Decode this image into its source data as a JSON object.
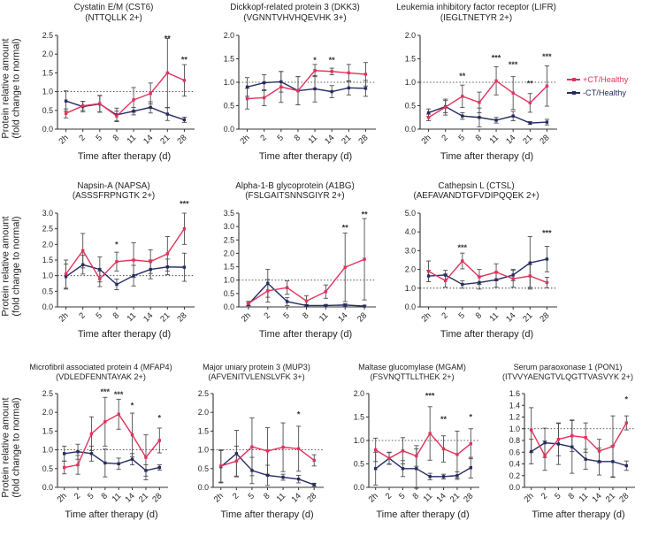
{
  "legend": {
    "items": [
      {
        "label": "+CT/Healthy",
        "color": "#E4315B"
      },
      {
        "label": "-CT/Healthy",
        "color": "#252C62"
      }
    ]
  },
  "axis": {
    "ylabel_line1": "Protein relative amount",
    "ylabel_line2": "(fold change to normal)",
    "xlabel": "Time after therapy (d)"
  },
  "colors": {
    "plus_ct": "#E4315B",
    "minus_ct": "#252C62",
    "error_bar": "#4d4d4d",
    "reference_line": "#231f20"
  },
  "chart_data": [
    {
      "id": "cst6",
      "type": "line",
      "row": 0,
      "title": "Cystatin E/M (CST6)",
      "subtitle": "(NTTQLLK 2+)",
      "xlabel": "Time after therapy (d)",
      "ylabel": "Protein relative amount (fold change to normal)",
      "categories": [
        "2h",
        "2",
        "5",
        "8",
        "11",
        "14",
        "21",
        "28"
      ],
      "ylim": [
        0,
        2.5
      ],
      "ytick_step": 0.5,
      "reference_line": 1.0,
      "series": [
        {
          "name": "+CT/Healthy",
          "color": "#E4315B",
          "values": [
            0.42,
            0.62,
            0.68,
            0.35,
            0.78,
            0.95,
            1.5,
            1.3
          ],
          "errors": [
            0.12,
            0.12,
            0.22,
            0.13,
            0.33,
            0.28,
            0.92,
            0.42
          ]
        },
        {
          "name": "-CT/Healthy",
          "color": "#252C62",
          "values": [
            0.75,
            0.6,
            0.67,
            0.38,
            0.48,
            0.58,
            0.4,
            0.25
          ],
          "errors": [
            0.27,
            0.14,
            0.22,
            0.18,
            0.1,
            0.15,
            0.17,
            0.07
          ]
        }
      ],
      "annotations": [
        {
          "x": "21",
          "y": 2.42,
          "text": "**"
        },
        {
          "x": "28",
          "y": 1.85,
          "text": "**"
        }
      ]
    },
    {
      "id": "dkk3",
      "type": "line",
      "row": 0,
      "title": "Dickkopf-related protein 3 (DKK3)",
      "subtitle": "(VGNNTVHVHQEVHK 3+)",
      "xlabel": "Time after therapy (d)",
      "ylabel": "Protein relative amount (fold change to normal)",
      "categories": [
        "2h",
        "2",
        "5",
        "8",
        "11",
        "14",
        "21",
        "28"
      ],
      "ylim": [
        0,
        2.0
      ],
      "ytick_step": 0.5,
      "reference_line": 1.0,
      "series": [
        {
          "name": "+CT/Healthy",
          "color": "#E4315B",
          "values": [
            0.65,
            0.67,
            0.9,
            0.82,
            1.25,
            1.23,
            1.2,
            1.17
          ],
          "errors": [
            0.22,
            0.17,
            0.33,
            0.3,
            0.13,
            0.07,
            0.18,
            0.25
          ]
        },
        {
          "name": "-CT/Healthy",
          "color": "#252C62",
          "values": [
            0.9,
            0.99,
            1.01,
            0.82,
            0.86,
            0.8,
            0.88,
            0.87
          ],
          "errors": [
            0.2,
            0.17,
            0.22,
            0.3,
            0.28,
            0.13,
            0.15,
            0.17
          ]
        }
      ],
      "annotations": [
        {
          "x": "11",
          "y": 1.47,
          "text": "*"
        },
        {
          "x": "14",
          "y": 1.47,
          "text": "**"
        }
      ]
    },
    {
      "id": "lifr",
      "type": "line",
      "row": 0,
      "title": "Leukemia inhibitory factor receptor (LIFR)",
      "subtitle": "(IEGLTNETYR 2+)",
      "xlabel": "Time after therapy (d)",
      "ylabel": "Protein relative amount (fold change to normal)",
      "categories": [
        "2h",
        "2",
        "5",
        "8",
        "11",
        "14",
        "21",
        "28"
      ],
      "ylim": [
        0,
        2.0
      ],
      "ytick_step": 0.5,
      "reference_line": 1.0,
      "series": [
        {
          "name": "+CT/Healthy",
          "color": "#E4315B",
          "values": [
            0.25,
            0.47,
            0.7,
            0.57,
            1.03,
            0.77,
            0.56,
            0.92
          ],
          "errors": [
            0.07,
            0.17,
            0.24,
            0.22,
            0.3,
            0.35,
            0.2,
            0.43
          ]
        },
        {
          "name": "-CT/Healthy",
          "color": "#252C62",
          "values": [
            0.35,
            0.48,
            0.28,
            0.25,
            0.19,
            0.28,
            0.13,
            0.15
          ],
          "errors": [
            0.08,
            0.13,
            0.07,
            0.2,
            0.06,
            0.1,
            0.03,
            0.06
          ]
        }
      ],
      "annotations": [
        {
          "x": "5",
          "y": 1.13,
          "text": "**"
        },
        {
          "x": "11",
          "y": 1.52,
          "text": "***"
        },
        {
          "x": "14",
          "y": 1.38,
          "text": "***"
        },
        {
          "x": "21",
          "y": 0.97,
          "text": "**"
        },
        {
          "x": "28",
          "y": 1.55,
          "text": "***"
        }
      ]
    },
    {
      "id": "napsa",
      "type": "line",
      "row": 1,
      "title": "Napsin-A (NAPSA)",
      "subtitle": "(ASSSFRPNGTK 2+)",
      "xlabel": "Time after therapy (d)",
      "ylabel": "Protein relative amount (fold change to normal)",
      "categories": [
        "2h",
        "2",
        "5",
        "8",
        "11",
        "14",
        "21",
        "28"
      ],
      "ylim": [
        0,
        3.0
      ],
      "ytick_step": 0.5,
      "reference_line": 1.0,
      "series": [
        {
          "name": "+CT/Healthy",
          "color": "#E4315B",
          "values": [
            1.05,
            1.8,
            0.9,
            1.45,
            1.5,
            1.45,
            1.7,
            2.5
          ],
          "errors": [
            0.45,
            0.55,
            0.25,
            0.3,
            0.55,
            0.38,
            0.55,
            0.5
          ]
        },
        {
          "name": "-CT/Healthy",
          "color": "#252C62",
          "values": [
            0.97,
            1.35,
            1.2,
            0.72,
            1.0,
            1.2,
            1.28,
            1.27
          ],
          "errors": [
            0.4,
            0.3,
            0.4,
            0.17,
            0.33,
            0.3,
            0.25,
            0.45
          ]
        }
      ],
      "annotations": [
        {
          "x": "8",
          "y": 2.0,
          "text": "*"
        },
        {
          "x": "28",
          "y": 3.3,
          "text": "***"
        }
      ]
    },
    {
      "id": "a1bg",
      "type": "line",
      "row": 1,
      "title": "Alpha-1-B glycoprotein (A1BG)",
      "subtitle": "(FSLGAITSNNSGIYR 2+)",
      "xlabel": "Time after therapy (d)",
      "ylabel": "Protein relative amount (fold change to normal)",
      "categories": [
        "2h",
        "2",
        "5",
        "8",
        "11",
        "14",
        "28"
      ],
      "ylim": [
        0,
        3.5
      ],
      "ytick_step": 0.5,
      "reference_line": 1.0,
      "series": [
        {
          "name": "+CT/Healthy",
          "color": "#E4315B",
          "values": [
            0.13,
            0.6,
            0.72,
            0.22,
            0.57,
            1.48,
            1.78
          ],
          "errors": [
            0.08,
            0.42,
            0.25,
            0.2,
            0.25,
            1.28,
            1.52
          ]
        },
        {
          "name": "-CT/Healthy",
          "color": "#252C62",
          "values": [
            0.1,
            0.88,
            0.2,
            0.05,
            0.05,
            0.07,
            0.03
          ],
          "errors": [
            0.06,
            0.52,
            0.15,
            0.04,
            0.04,
            0.05,
            0.03
          ]
        }
      ],
      "annotations": [
        {
          "x": "14",
          "y": 2.95,
          "text": "**"
        },
        {
          "x": "28",
          "y": 3.45,
          "text": "**"
        }
      ]
    },
    {
      "id": "ctsl",
      "type": "line",
      "row": 1,
      "title": "Cathepsin L (CTSL)",
      "subtitle": "(AEFAVANDTGFVDIPQQEK 2+)",
      "xlabel": "Time after therapy (d)",
      "ylabel": "Protein relative amount (fold change to normal)",
      "categories": [
        "2h",
        "2",
        "5",
        "8",
        "11",
        "14",
        "21",
        "28"
      ],
      "ylim": [
        0,
        5.0
      ],
      "ytick_step": 1.0,
      "reference_line": 1.0,
      "series": [
        {
          "name": "+CT/Healthy",
          "color": "#E4315B",
          "values": [
            1.9,
            1.4,
            2.45,
            1.6,
            1.85,
            1.5,
            1.65,
            1.3
          ],
          "errors": [
            0.55,
            0.35,
            0.42,
            0.4,
            0.45,
            0.45,
            0.6,
            0.28
          ]
        },
        {
          "name": "-CT/Healthy",
          "color": "#252C62",
          "values": [
            1.65,
            1.7,
            1.2,
            1.3,
            1.45,
            1.7,
            2.35,
            2.55
          ],
          "errors": [
            0.3,
            0.25,
            0.2,
            0.35,
            0.4,
            0.3,
            1.4,
            0.68
          ]
        }
      ],
      "annotations": [
        {
          "x": "5",
          "y": 3.15,
          "text": "***"
        },
        {
          "x": "28",
          "y": 3.95,
          "text": "***"
        }
      ]
    },
    {
      "id": "mfap4",
      "type": "line",
      "row": 2,
      "title": "Microfibril associated protein 4 (MFAP4)",
      "subtitle": "(VDLEDFENNTAYAK 2+)",
      "xlabel": "Time after therapy (d)",
      "ylabel": "Protein relative amount (fold change to normal)",
      "categories": [
        "2h",
        "2",
        "5",
        "8",
        "11",
        "14",
        "21",
        "28"
      ],
      "ylim": [
        0,
        2.5
      ],
      "ytick_step": 0.5,
      "reference_line": 1.0,
      "series": [
        {
          "name": "+CT/Healthy",
          "color": "#E4315B",
          "values": [
            0.53,
            0.6,
            1.43,
            1.75,
            1.95,
            1.4,
            0.8,
            1.25
          ],
          "errors": [
            0.17,
            0.25,
            0.45,
            0.65,
            0.4,
            0.58,
            0.6,
            0.33
          ]
        },
        {
          "name": "-CT/Healthy",
          "color": "#252C62",
          "values": [
            0.9,
            0.95,
            0.9,
            0.65,
            0.63,
            0.75,
            0.45,
            0.53
          ],
          "errors": [
            0.2,
            0.2,
            0.2,
            0.37,
            0.15,
            0.15,
            0.15,
            0.07
          ]
        }
      ],
      "annotations": [
        {
          "x": "8",
          "y": 2.55,
          "text": "***"
        },
        {
          "x": "11",
          "y": 2.48,
          "text": "***"
        },
        {
          "x": "14",
          "y": 2.18,
          "text": "*"
        },
        {
          "x": "28",
          "y": 1.85,
          "text": "*"
        }
      ]
    },
    {
      "id": "mup3",
      "type": "line",
      "row": 2,
      "title": "Major uniary protein 3 (MUP3)",
      "subtitle": "(AFVENITVLENSLVFK 3+)",
      "xlabel": "Time after therapy (d)",
      "ylabel": "Protein relative amount (fold change to normal)",
      "categories": [
        "2h",
        "2",
        "5",
        "8",
        "11",
        "14",
        "28"
      ],
      "ylim": [
        0,
        2.5
      ],
      "ytick_step": 0.5,
      "reference_line": 1.0,
      "series": [
        {
          "name": "+CT/Healthy",
          "color": "#E4315B",
          "values": [
            0.57,
            0.7,
            1.08,
            0.97,
            1.07,
            1.03,
            0.72
          ],
          "errors": [
            0.43,
            0.4,
            0.77,
            0.62,
            0.65,
            0.6,
            0.15
          ]
        },
        {
          "name": "-CT/Healthy",
          "color": "#252C62",
          "values": [
            0.55,
            0.9,
            0.45,
            0.32,
            0.27,
            0.22,
            0.07
          ],
          "errors": [
            0.43,
            0.62,
            0.35,
            0.27,
            0.08,
            0.1,
            0.04
          ]
        }
      ],
      "annotations": [
        {
          "x": "14",
          "y": 1.95,
          "text": "*"
        }
      ]
    },
    {
      "id": "mgam",
      "type": "line",
      "row": 2,
      "title": "Maltase glucomylase (MGAM)",
      "subtitle": "(FSVNQTTLLTHEK 2+)",
      "xlabel": "Time after therapy (d)",
      "ylabel": "Protein relative amount (fold change to normal)",
      "categories": [
        "2h",
        "2",
        "5",
        "8",
        "11",
        "14",
        "21",
        "28"
      ],
      "ylim": [
        0,
        2.0
      ],
      "ytick_step": 0.5,
      "reference_line": 1.0,
      "series": [
        {
          "name": "+CT/Healthy",
          "color": "#E4315B",
          "values": [
            0.8,
            0.62,
            0.78,
            0.67,
            1.15,
            0.82,
            0.7,
            0.93
          ],
          "errors": [
            0.25,
            0.13,
            0.28,
            0.22,
            0.57,
            0.28,
            0.5,
            0.32
          ]
        },
        {
          "name": "-CT/Healthy",
          "color": "#252C62",
          "values": [
            0.4,
            0.62,
            0.4,
            0.4,
            0.23,
            0.23,
            0.25,
            0.42
          ],
          "errors": [
            0.35,
            0.12,
            0.17,
            0.42,
            0.07,
            0.05,
            0.08,
            0.22
          ]
        }
      ],
      "annotations": [
        {
          "x": "11",
          "y": 1.95,
          "text": "***"
        },
        {
          "x": "14",
          "y": 1.45,
          "text": "**"
        },
        {
          "x": "28",
          "y": 1.5,
          "text": "*"
        }
      ]
    },
    {
      "id": "pon1",
      "type": "line",
      "row": 2,
      "title": "Serum paraoxonase 1 (PON1)",
      "subtitle": "(ITVVYAENGTVLQGTTVASVYK 2+)",
      "xlabel": "Time after therapy (d)",
      "ylabel": "Protein relative amount (fold change to normal)",
      "categories": [
        "2h",
        "2",
        "5",
        "8",
        "11",
        "14",
        "21",
        "28"
      ],
      "ylim": [
        0,
        1.6
      ],
      "ytick_step": 0.2,
      "reference_line": 1.0,
      "series": [
        {
          "name": "+CT/Healthy",
          "color": "#E4315B",
          "values": [
            0.98,
            0.54,
            0.82,
            0.88,
            0.85,
            0.62,
            0.7,
            1.1
          ],
          "errors": [
            0.38,
            0.25,
            0.28,
            0.27,
            0.25,
            0.2,
            0.52,
            0.12
          ]
        },
        {
          "name": "-CT/Healthy",
          "color": "#252C62",
          "values": [
            0.61,
            0.76,
            0.74,
            0.69,
            0.48,
            0.44,
            0.44,
            0.37
          ],
          "errors": [
            0.21,
            0.25,
            0.35,
            0.45,
            0.17,
            0.23,
            0.27,
            0.08
          ]
        }
      ],
      "annotations": [
        {
          "x": "28",
          "y": 1.5,
          "text": "*"
        }
      ]
    }
  ]
}
